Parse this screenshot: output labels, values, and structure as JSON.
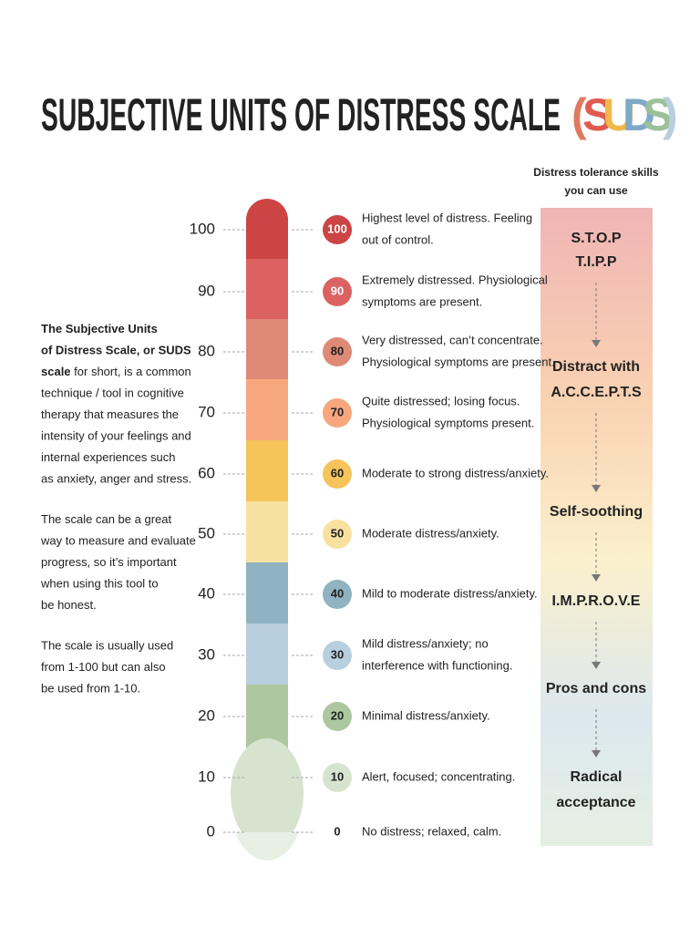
{
  "title": "SUBJECTIVE UNITS OF DISTRESS SCALE",
  "title_suffix": [
    {
      "text": "(",
      "color": "#e07a5f"
    },
    {
      "text": "S",
      "color": "#e05a4f"
    },
    {
      "text": "U",
      "color": "#f2b84b"
    },
    {
      "text": "D",
      "color": "#7fa9c9"
    },
    {
      "text": "S",
      "color": "#9cc19a"
    },
    {
      "text": ")",
      "color": "#b8cfe0"
    }
  ],
  "intro": [
    {
      "lines": [
        {
          "bold": "The Subjective Units"
        },
        {
          "bold": "of Distress Scale, or SUDS"
        },
        {
          "bold": "scale",
          "text": " for short, is a common"
        },
        {
          "text": "technique / tool in cognitive"
        },
        {
          "text": "therapy that measures the"
        },
        {
          "text": "intensity of your feelings and"
        },
        {
          "text": "internal experiences such"
        },
        {
          "text": "as anxiety, anger and stress."
        }
      ]
    },
    {
      "lines": [
        {
          "text": "The scale can be a great"
        },
        {
          "text": "way to measure and evaluate"
        },
        {
          "text": "progress, so it’s important"
        },
        {
          "text": "when using this tool to"
        },
        {
          "text": "be honest."
        }
      ]
    },
    {
      "lines": [
        {
          "text": "The scale is usually used"
        },
        {
          "text": "from 1-100 but can also"
        },
        {
          "text": "be used from 1-10."
        }
      ]
    }
  ],
  "levels": [
    {
      "value": 100,
      "color": "#cc4444",
      "description": [
        "Highest level of distress. Feeling",
        "out of control."
      ]
    },
    {
      "value": 90,
      "color": "#dc6262",
      "description": [
        "Extremely distressed. Physiological",
        "symptoms are present."
      ]
    },
    {
      "value": 80,
      "color": "#de8a76",
      "description": [
        "Very distressed, can’t concentrate.",
        "Physiological symptoms are present."
      ]
    },
    {
      "value": 70,
      "color": "#f7a77e",
      "description": [
        "Quite distressed; losing focus.",
        "Physiological symptoms present."
      ]
    },
    {
      "value": 60,
      "color": "#f5c45a",
      "description": [
        "Moderate to strong distress/anxiety."
      ]
    },
    {
      "value": 50,
      "color": "#f8e1a0",
      "description": [
        "Moderate distress/anxiety."
      ]
    },
    {
      "value": 40,
      "color": "#8fb3c0",
      "description": [
        "Mild to moderate distress/anxiety."
      ]
    },
    {
      "value": 30,
      "color": "#b8cfe0",
      "description": [
        "Mild distress/anxiety; no",
        "interference with functioning."
      ]
    },
    {
      "value": 20,
      "color": "#adc8a0",
      "description": [
        "Minimal distress/anxiety."
      ]
    },
    {
      "value": 10,
      "color": "#d6e4cf",
      "description": [
        "Alert, focused; concentrating."
      ]
    },
    {
      "value": 0,
      "color": "#e8f0e4",
      "description": [
        "No distress; relaxed, calm."
      ]
    }
  ],
  "skills_header": [
    "Distress tolerance skills",
    "you can use"
  ],
  "skills": [
    [
      "S.T.O.P",
      "T.I.P.P"
    ],
    [
      "Distract with",
      "A.C.C.E.P.T.S"
    ],
    [
      "Self-soothing"
    ],
    [
      "I.M.P.R.O.V.E"
    ],
    [
      "Pros and cons"
    ],
    [
      "Radical",
      "acceptance"
    ]
  ]
}
